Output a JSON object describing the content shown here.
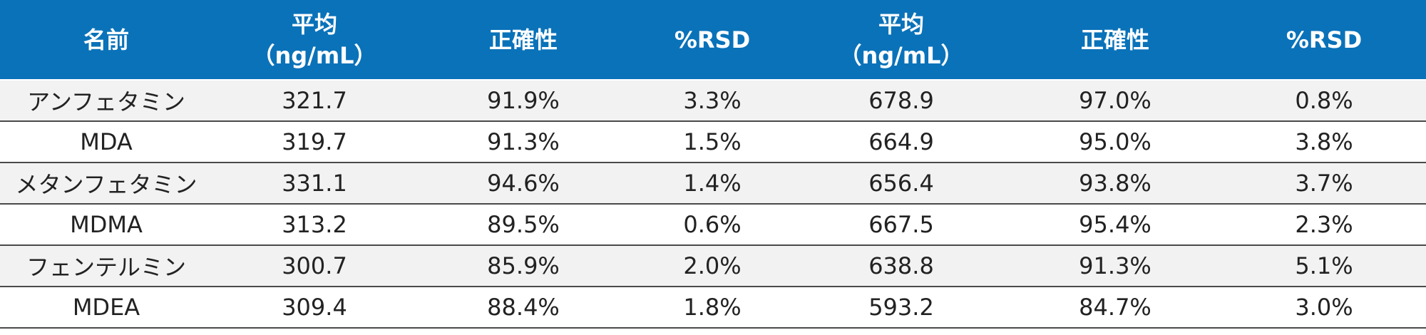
{
  "table": {
    "headers": [
      {
        "lines": [
          "名前"
        ]
      },
      {
        "lines": [
          "平均",
          "（ng/mL）"
        ]
      },
      {
        "lines": [
          "正確性"
        ]
      },
      {
        "lines": [
          "%RSD"
        ]
      },
      {
        "lines": [
          "平均",
          "（ng/mL）"
        ]
      },
      {
        "lines": [
          "正確性"
        ]
      },
      {
        "lines": [
          "%RSD"
        ]
      }
    ],
    "rows": [
      {
        "name": "アンフェタミン",
        "values": [
          "321.7",
          "91.9%",
          "3.3%",
          "678.9",
          "97.0%",
          "0.8%"
        ]
      },
      {
        "name": "MDA",
        "values": [
          "319.7",
          "91.3%",
          "1.5%",
          "664.9",
          "95.0%",
          "3.8%"
        ]
      },
      {
        "name": "メタンフェタミン",
        "values": [
          "331.1",
          "94.6%",
          "1.4%",
          "656.4",
          "93.8%",
          "3.7%"
        ]
      },
      {
        "name": "MDMA",
        "values": [
          "313.2",
          "89.5%",
          "0.6%",
          "667.5",
          "95.4%",
          "2.3%"
        ]
      },
      {
        "name": "フェンテルミン",
        "values": [
          "300.7",
          "85.9%",
          "2.0%",
          "638.8",
          "91.3%",
          "5.1%"
        ]
      },
      {
        "name": "MDEA",
        "values": [
          "309.4",
          "88.4%",
          "1.8%",
          "593.2",
          "84.7%",
          "3.0%"
        ]
      }
    ]
  },
  "colors": {
    "header_bg": "#0a72b9",
    "header_text": "#ffffff",
    "row_alt_bg": "#f2f2f2",
    "row_bg": "#ffffff",
    "row_divider": "#4a4a4a"
  }
}
